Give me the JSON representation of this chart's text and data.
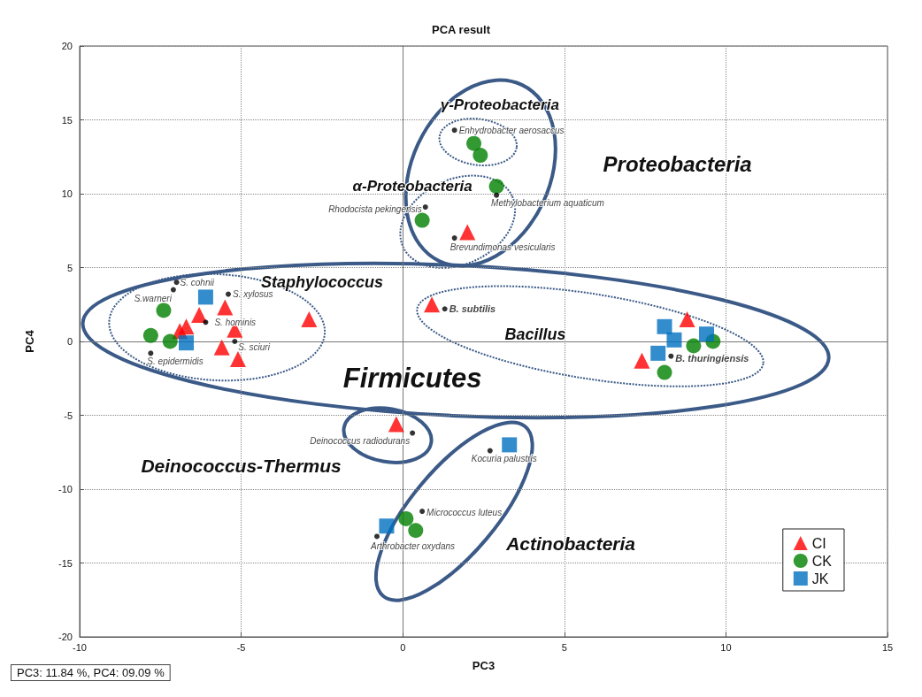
{
  "chart_data": {
    "type": "scatter",
    "title": "PCA result",
    "xlabel": "PC3",
    "ylabel": "PC4",
    "xlim": [
      -10,
      15
    ],
    "xticks": [
      -10,
      -5,
      0,
      5,
      10,
      15
    ],
    "ylim": [
      -20,
      20
    ],
    "yticks": [
      -20,
      -15,
      -10,
      -5,
      0,
      5,
      10,
      15,
      20
    ],
    "grid": true,
    "legend": "bottom right",
    "series": [
      {
        "name": "CI",
        "color": "#ff0000",
        "marker": "triangle",
        "x": [
          -6.3,
          -5.5,
          -6.7,
          -6.9,
          -5.2,
          -5.6,
          -5.1,
          -2.9,
          0.9,
          2.0,
          -0.2,
          8.8,
          7.4
        ],
        "values": [
          1.8,
          2.3,
          1.0,
          0.7,
          0.8,
          -0.4,
          -1.2,
          1.5,
          2.5,
          7.4,
          -5.6,
          1.5,
          -1.3
        ]
      },
      {
        "name": "CK",
        "color": "#008000",
        "marker": "circle",
        "x": [
          -7.4,
          -7.8,
          -7.2,
          2.2,
          2.4,
          2.9,
          0.6,
          9.0,
          9.6,
          8.1,
          0.1,
          0.4
        ],
        "values": [
          2.1,
          0.4,
          0.0,
          13.4,
          12.6,
          10.5,
          8.2,
          -0.3,
          0.0,
          -2.1,
          -12.0,
          -12.8
        ]
      },
      {
        "name": "JK",
        "color": "#0070c0",
        "marker": "square",
        "x": [
          -6.1,
          -6.7,
          8.1,
          8.4,
          9.4,
          7.9,
          3.3,
          -0.5
        ],
        "values": [
          3.0,
          -0.1,
          1.0,
          0.1,
          0.5,
          -0.8,
          -7.0,
          -12.5
        ]
      },
      {
        "color": "#000000",
        "marker": "circle",
        "x": [
          -7.0,
          -7.1,
          -5.4,
          -6.1,
          -5.2,
          -7.8,
          1.3,
          8.3,
          1.6,
          2.9,
          0.7,
          1.6,
          0.3,
          2.7,
          0.6,
          -0.8
        ],
        "values": [
          4.0,
          3.5,
          3.2,
          1.3,
          0.0,
          -0.8,
          2.2,
          -1.0,
          14.3,
          9.9,
          9.1,
          7.0,
          -6.2,
          -7.4,
          -11.5,
          -13.2
        ]
      }
    ],
    "annotations": [
      {
        "text": "S. cohnii",
        "x": -7.0,
        "y": 4.0
      },
      {
        "text": "S.warneri",
        "x": -7.1,
        "y": 3.5
      },
      {
        "text": "S. xylosus",
        "x": -5.4,
        "y": 3.2
      },
      {
        "text": "S. hominis",
        "x": -6.1,
        "y": 1.3
      },
      {
        "text": "S. sciuri",
        "x": -5.2,
        "y": 0.0
      },
      {
        "text": "S. epidermidis",
        "x": -7.8,
        "y": -0.8
      },
      {
        "text": "B. subtilis",
        "x": 1.3,
        "y": 2.2
      },
      {
        "text": "B. thuringiensis",
        "x": 8.3,
        "y": -1.0
      },
      {
        "text": "Enhydrobacter aerosaccus",
        "x": 1.6,
        "y": 14.3
      },
      {
        "text": "Methylobacterium aquaticum",
        "x": 2.9,
        "y": 9.9
      },
      {
        "text": "Rhodocista pekingensis",
        "x": 0.7,
        "y": 9.1
      },
      {
        "text": "Brevundimonas vesicularis",
        "x": 1.6,
        "y": 7.0
      },
      {
        "text": "Deinococcus radiodurans",
        "x": 0.3,
        "y": -6.2
      },
      {
        "text": "Kocuria palustris",
        "x": 2.7,
        "y": -7.4
      },
      {
        "text": "Micrococcus luteus",
        "x": 0.6,
        "y": -11.5
      },
      {
        "text": "Arthrobacter oxydans",
        "x": -0.8,
        "y": -13.2
      },
      "γ-Proteobacteria",
      "Proteobacteria",
      "α-Proteobacteria",
      "Staphylococcus",
      "Bacillus",
      "Firmicutes",
      "Deinococcus-Thermus",
      "Actinobacteria",
      "PC3: 11.84 %, PC4: 09.09 %"
    ]
  }
}
